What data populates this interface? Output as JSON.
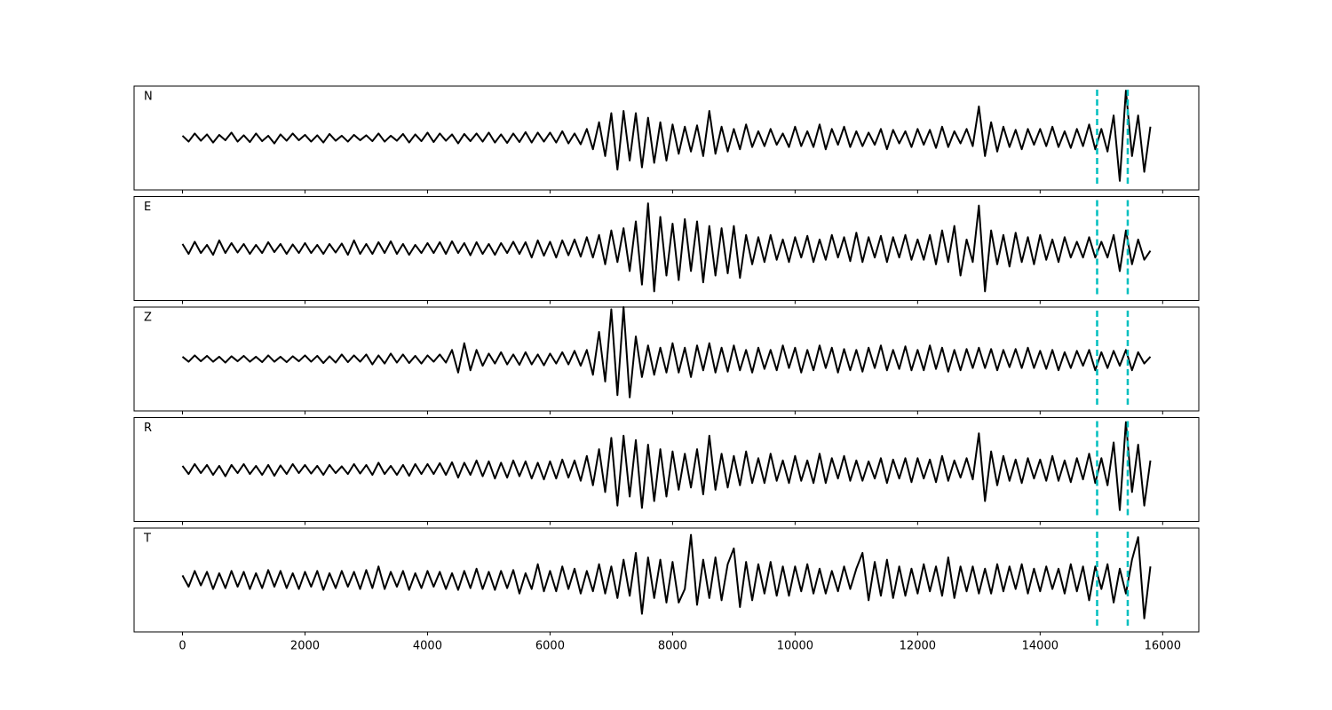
{
  "chart_data": {
    "type": "line",
    "x": [
      0,
      100,
      200,
      300,
      400,
      500,
      600,
      700,
      800,
      900,
      1000,
      1100,
      1200,
      1300,
      1400,
      1500,
      1600,
      1700,
      1800,
      1900,
      2000,
      2100,
      2200,
      2300,
      2400,
      2500,
      2600,
      2700,
      2800,
      2900,
      3000,
      3100,
      3200,
      3300,
      3400,
      3500,
      3600,
      3700,
      3800,
      3900,
      4000,
      4100,
      4200,
      4300,
      4400,
      4500,
      4600,
      4700,
      4800,
      4900,
      5000,
      5100,
      5200,
      5300,
      5400,
      5500,
      5600,
      5700,
      5800,
      5900,
      6000,
      6100,
      6200,
      6300,
      6400,
      6500,
      6600,
      6700,
      6800,
      6900,
      7000,
      7100,
      7200,
      7300,
      7400,
      7500,
      7600,
      7700,
      7800,
      7900,
      8000,
      8100,
      8200,
      8300,
      8400,
      8500,
      8600,
      8700,
      8800,
      8900,
      9000,
      9100,
      9200,
      9300,
      9400,
      9500,
      9600,
      9700,
      9800,
      9900,
      10000,
      10100,
      10200,
      10300,
      10400,
      10500,
      10600,
      10700,
      10800,
      10900,
      11000,
      11100,
      11200,
      11300,
      11400,
      11500,
      11600,
      11700,
      11800,
      11900,
      12000,
      12100,
      12200,
      12300,
      12400,
      12500,
      12600,
      12700,
      12800,
      12900,
      13000,
      13100,
      13200,
      13300,
      13400,
      13500,
      13600,
      13700,
      13800,
      13900,
      14000,
      14100,
      14200,
      14300,
      14400,
      14500,
      14600,
      14700,
      14800,
      14900,
      15000,
      15100,
      15200,
      15300,
      15400,
      15500,
      15600,
      15700,
      15800
    ],
    "xlim": [
      -790,
      16590
    ],
    "xticks": [
      0,
      2000,
      4000,
      6000,
      8000,
      10000,
      12000,
      14000,
      16000
    ],
    "ylim": [
      -1.15,
      1.15
    ],
    "vlines": [
      14930,
      15430
    ],
    "vline_color": "#00bfbf",
    "series": [
      {
        "name": "N",
        "color": "#000000",
        "values": [
          0.05,
          -0.08,
          0.1,
          -0.06,
          0.08,
          -0.1,
          0.07,
          -0.05,
          0.12,
          -0.08,
          0.06,
          -0.09,
          0.1,
          -0.07,
          0.05,
          -0.12,
          0.08,
          -0.06,
          0.1,
          -0.05,
          0.07,
          -0.08,
          0.06,
          -0.1,
          0.09,
          -0.06,
          0.05,
          -0.08,
          0.07,
          -0.05,
          0.06,
          -0.07,
          0.1,
          -0.08,
          0.05,
          -0.06,
          0.09,
          -0.1,
          0.08,
          -0.07,
          0.12,
          -0.09,
          0.1,
          -0.06,
          0.08,
          -0.12,
          0.09,
          -0.07,
          0.1,
          -0.08,
          0.12,
          -0.1,
          0.08,
          -0.11,
          0.1,
          -0.09,
          0.13,
          -0.1,
          0.12,
          -0.08,
          0.12,
          -0.1,
          0.15,
          -0.12,
          0.1,
          -0.14,
          0.2,
          -0.25,
          0.35,
          -0.4,
          0.55,
          -0.7,
          0.6,
          -0.5,
          0.55,
          -0.65,
          0.45,
          -0.55,
          0.35,
          -0.5,
          0.3,
          -0.35,
          0.25,
          -0.3,
          0.28,
          -0.4,
          0.6,
          -0.35,
          0.25,
          -0.3,
          0.2,
          -0.25,
          0.3,
          -0.2,
          0.15,
          -0.18,
          0.2,
          -0.15,
          0.1,
          -0.2,
          0.25,
          -0.18,
          0.15,
          -0.2,
          0.3,
          -0.25,
          0.2,
          -0.15,
          0.25,
          -0.2,
          0.15,
          -0.18,
          0.12,
          -0.15,
          0.2,
          -0.25,
          0.18,
          -0.12,
          0.15,
          -0.2,
          0.2,
          -0.15,
          0.18,
          -0.22,
          0.25,
          -0.2,
          0.15,
          -0.12,
          0.2,
          -0.18,
          0.7,
          -0.4,
          0.35,
          -0.3,
          0.25,
          -0.2,
          0.18,
          -0.25,
          0.2,
          -0.15,
          0.2,
          -0.18,
          0.25,
          -0.2,
          0.15,
          -0.22,
          0.2,
          -0.18,
          0.3,
          -0.25,
          0.2,
          -0.3,
          0.5,
          -0.95,
          1.05,
          -0.4,
          0.5,
          -0.75,
          0.25
        ]
      },
      {
        "name": "E",
        "color": "#000000",
        "values": [
          0.1,
          -0.12,
          0.15,
          -0.1,
          0.08,
          -0.14,
          0.18,
          -0.1,
          0.12,
          -0.09,
          0.1,
          -0.12,
          0.08,
          -0.1,
          0.14,
          -0.08,
          0.1,
          -0.12,
          0.09,
          -0.1,
          0.12,
          -0.1,
          0.08,
          -0.12,
          0.1,
          -0.09,
          0.11,
          -0.14,
          0.18,
          -0.12,
          0.1,
          -0.12,
          0.14,
          -0.1,
          0.16,
          -0.12,
          0.1,
          -0.14,
          0.08,
          -0.1,
          0.12,
          -0.1,
          0.14,
          -0.12,
          0.16,
          -0.1,
          0.12,
          -0.15,
          0.14,
          -0.12,
          0.1,
          -0.14,
          0.12,
          -0.1,
          0.15,
          -0.12,
          0.14,
          -0.2,
          0.18,
          -0.16,
          0.15,
          -0.2,
          0.18,
          -0.15,
          0.2,
          -0.18,
          0.25,
          -0.2,
          0.3,
          -0.35,
          0.4,
          -0.3,
          0.45,
          -0.5,
          0.6,
          -0.8,
          1.0,
          -0.95,
          0.7,
          -0.6,
          0.55,
          -0.7,
          0.65,
          -0.5,
          0.6,
          -0.75,
          0.5,
          -0.6,
          0.45,
          -0.55,
          0.5,
          -0.65,
          0.3,
          -0.35,
          0.25,
          -0.3,
          0.3,
          -0.25,
          0.2,
          -0.3,
          0.25,
          -0.2,
          0.28,
          -0.3,
          0.2,
          -0.25,
          0.3,
          -0.2,
          0.25,
          -0.28,
          0.35,
          -0.3,
          0.25,
          -0.2,
          0.28,
          -0.3,
          0.25,
          -0.2,
          0.3,
          -0.25,
          0.2,
          -0.25,
          0.3,
          -0.35,
          0.4,
          -0.3,
          0.5,
          -0.6,
          0.2,
          -0.3,
          0.95,
          -0.95,
          0.4,
          -0.35,
          0.3,
          -0.4,
          0.35,
          -0.3,
          0.25,
          -0.35,
          0.3,
          -0.25,
          0.2,
          -0.3,
          0.25,
          -0.2,
          0.15,
          -0.2,
          0.25,
          -0.2,
          0.15,
          -0.2,
          0.3,
          -0.5,
          0.4,
          -0.35,
          0.2,
          -0.25,
          -0.05
        ]
      },
      {
        "name": "Z",
        "color": "#000000",
        "values": [
          0.05,
          -0.06,
          0.08,
          -0.05,
          0.07,
          -0.06,
          0.05,
          -0.08,
          0.06,
          -0.05,
          0.07,
          -0.06,
          0.05,
          -0.07,
          0.08,
          -0.06,
          0.05,
          -0.07,
          0.06,
          -0.05,
          0.08,
          -0.06,
          0.07,
          -0.09,
          0.06,
          -0.08,
          0.1,
          -0.07,
          0.08,
          -0.06,
          0.1,
          -0.12,
          0.08,
          -0.1,
          0.12,
          -0.08,
          0.1,
          -0.09,
          0.07,
          -0.1,
          0.08,
          -0.06,
          0.1,
          -0.08,
          0.2,
          -0.3,
          0.35,
          -0.25,
          0.2,
          -0.15,
          0.12,
          -0.1,
          0.15,
          -0.12,
          0.1,
          -0.13,
          0.15,
          -0.12,
          0.1,
          -0.14,
          0.12,
          -0.1,
          0.15,
          -0.12,
          0.18,
          -0.15,
          0.2,
          -0.35,
          0.6,
          -0.5,
          1.1,
          -0.8,
          1.15,
          -0.85,
          0.5,
          -0.4,
          0.3,
          -0.35,
          0.25,
          -0.3,
          0.35,
          -0.3,
          0.25,
          -0.4,
          0.3,
          -0.25,
          0.35,
          -0.3,
          0.25,
          -0.28,
          0.3,
          -0.25,
          0.2,
          -0.3,
          0.25,
          -0.22,
          0.2,
          -0.25,
          0.3,
          -0.2,
          0.25,
          -0.3,
          0.2,
          -0.25,
          0.3,
          -0.2,
          0.25,
          -0.3,
          0.22,
          -0.25,
          0.2,
          -0.28,
          0.25,
          -0.2,
          0.3,
          -0.25,
          0.2,
          -0.22,
          0.28,
          -0.25,
          0.2,
          -0.25,
          0.3,
          -0.22,
          0.25,
          -0.28,
          0.2,
          -0.25,
          0.22,
          -0.2,
          0.25,
          -0.2,
          0.22,
          -0.25,
          0.2,
          -0.18,
          0.22,
          -0.2,
          0.25,
          -0.2,
          0.18,
          -0.22,
          0.2,
          -0.25,
          0.15,
          -0.2,
          0.18,
          -0.15,
          0.2,
          -0.25,
          0.15,
          -0.2,
          0.18,
          -0.15,
          0.2,
          -0.25,
          0.15,
          -0.1,
          0.05
        ]
      },
      {
        "name": "R",
        "color": "#000000",
        "values": [
          0.08,
          -0.1,
          0.12,
          -0.08,
          0.1,
          -0.12,
          0.08,
          -0.15,
          0.1,
          -0.08,
          0.12,
          -0.1,
          0.08,
          -0.12,
          0.1,
          -0.14,
          0.09,
          -0.1,
          0.12,
          -0.08,
          0.1,
          -0.09,
          0.08,
          -0.12,
          0.1,
          -0.08,
          0.07,
          -0.1,
          0.12,
          -0.09,
          0.1,
          -0.12,
          0.15,
          -0.1,
          0.08,
          -0.12,
          0.1,
          -0.14,
          0.12,
          -0.1,
          0.12,
          -0.1,
          0.14,
          -0.12,
          0.16,
          -0.18,
          0.15,
          -0.12,
          0.2,
          -0.15,
          0.18,
          -0.2,
          0.15,
          -0.18,
          0.2,
          -0.15,
          0.18,
          -0.2,
          0.15,
          -0.22,
          0.18,
          -0.2,
          0.22,
          -0.18,
          0.2,
          -0.25,
          0.3,
          -0.35,
          0.45,
          -0.5,
          0.7,
          -0.8,
          0.75,
          -0.6,
          0.65,
          -0.85,
          0.55,
          -0.7,
          0.45,
          -0.6,
          0.4,
          -0.45,
          0.35,
          -0.4,
          0.45,
          -0.55,
          0.75,
          -0.45,
          0.35,
          -0.4,
          0.3,
          -0.35,
          0.4,
          -0.3,
          0.25,
          -0.3,
          0.35,
          -0.25,
          0.2,
          -0.3,
          0.3,
          -0.25,
          0.2,
          -0.3,
          0.35,
          -0.3,
          0.25,
          -0.2,
          0.3,
          -0.25,
          0.2,
          -0.25,
          0.18,
          -0.2,
          0.25,
          -0.3,
          0.22,
          -0.2,
          0.25,
          -0.28,
          0.25,
          -0.2,
          0.22,
          -0.28,
          0.3,
          -0.25,
          0.2,
          -0.18,
          0.25,
          -0.22,
          0.8,
          -0.7,
          0.4,
          -0.35,
          0.3,
          -0.25,
          0.22,
          -0.3,
          0.25,
          -0.2,
          0.22,
          -0.25,
          0.3,
          -0.25,
          0.2,
          -0.28,
          0.25,
          -0.22,
          0.35,
          -0.3,
          0.25,
          -0.35,
          0.6,
          -0.9,
          1.05,
          -0.5,
          0.55,
          -0.8,
          0.2
        ]
      },
      {
        "name": "T",
        "color": "#000000",
        "values": [
          0.1,
          -0.15,
          0.2,
          -0.12,
          0.18,
          -0.2,
          0.15,
          -0.18,
          0.2,
          -0.15,
          0.18,
          -0.2,
          0.15,
          -0.18,
          0.22,
          -0.15,
          0.2,
          -0.18,
          0.15,
          -0.2,
          0.18,
          -0.15,
          0.2,
          -0.22,
          0.15,
          -0.18,
          0.2,
          -0.15,
          0.18,
          -0.2,
          0.22,
          -0.18,
          0.3,
          -0.2,
          0.18,
          -0.15,
          0.2,
          -0.22,
          0.15,
          -0.18,
          0.2,
          -0.15,
          0.18,
          -0.2,
          0.15,
          -0.22,
          0.2,
          -0.18,
          0.25,
          -0.2,
          0.18,
          -0.22,
          0.2,
          -0.18,
          0.22,
          -0.3,
          0.15,
          -0.2,
          0.35,
          -0.25,
          0.2,
          -0.25,
          0.3,
          -0.2,
          0.25,
          -0.3,
          0.2,
          -0.25,
          0.35,
          -0.3,
          0.3,
          -0.4,
          0.45,
          -0.35,
          0.6,
          -0.75,
          0.5,
          -0.4,
          0.45,
          -0.5,
          0.4,
          -0.5,
          -0.2,
          1.0,
          -0.55,
          0.45,
          -0.4,
          0.5,
          -0.45,
          0.35,
          0.7,
          -0.6,
          0.4,
          -0.45,
          0.35,
          -0.3,
          0.4,
          -0.35,
          0.3,
          -0.35,
          0.3,
          -0.25,
          0.35,
          -0.3,
          0.25,
          -0.3,
          0.2,
          -0.25,
          0.3,
          -0.2,
          0.25,
          0.6,
          -0.45,
          0.4,
          -0.35,
          0.45,
          -0.4,
          0.3,
          -0.35,
          0.25,
          -0.3,
          0.35,
          -0.25,
          0.3,
          -0.35,
          0.5,
          -0.4,
          0.3,
          -0.25,
          0.3,
          -0.3,
          0.25,
          -0.3,
          0.35,
          -0.25,
          0.3,
          -0.2,
          0.35,
          -0.3,
          0.25,
          -0.25,
          0.3,
          -0.2,
          0.25,
          -0.3,
          0.35,
          -0.25,
          0.3,
          -0.45,
          0.3,
          -0.2,
          0.35,
          -0.5,
          0.25,
          -0.3,
          0.45,
          0.95,
          -0.85,
          0.3
        ]
      }
    ]
  }
}
